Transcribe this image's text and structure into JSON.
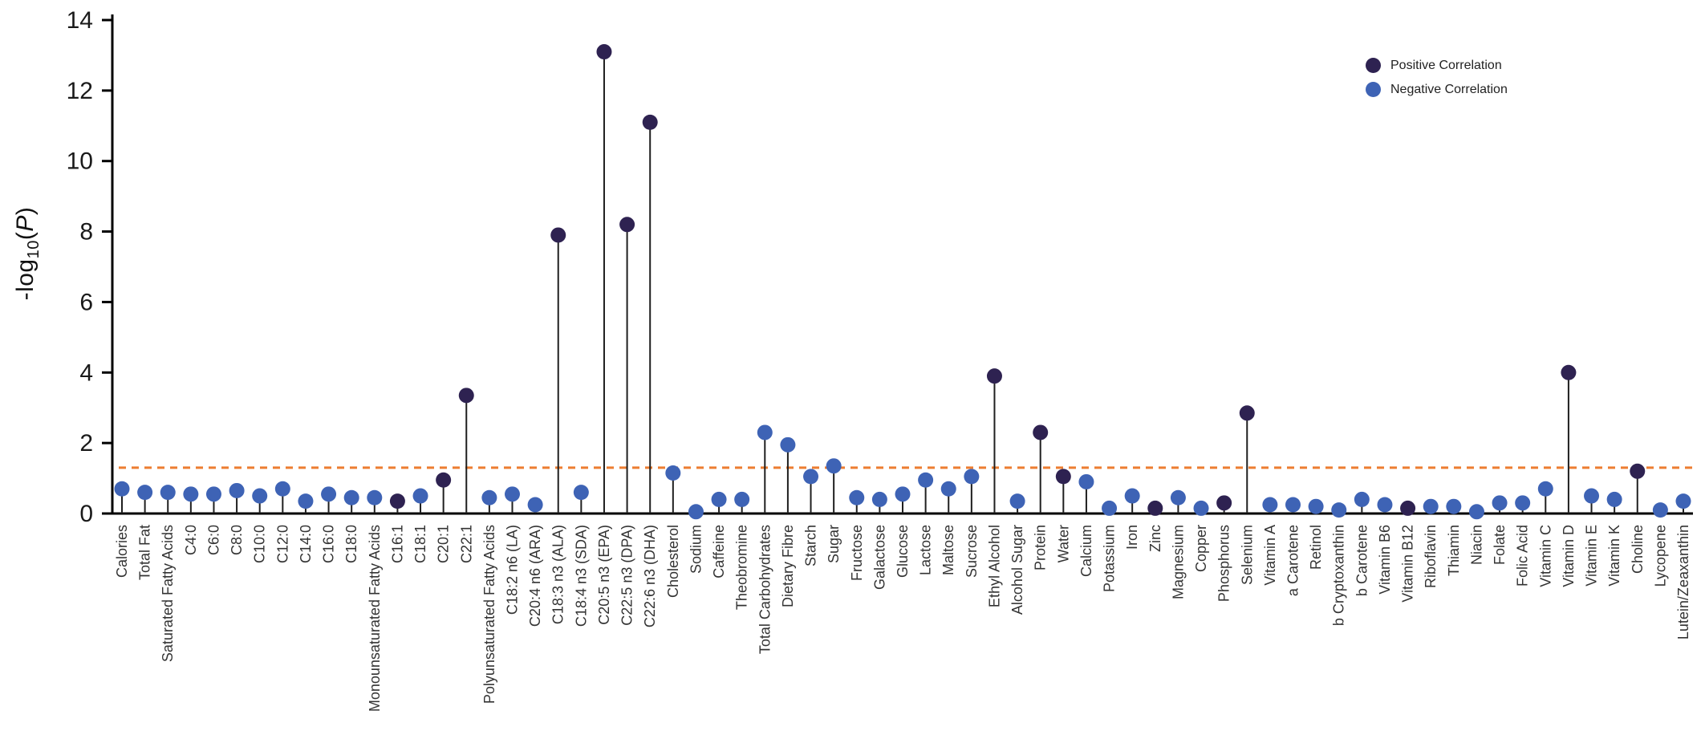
{
  "chart_data": {
    "type": "scatter",
    "variant": "lollipop",
    "title": "",
    "xlabel": "",
    "ylabel_parts": {
      "prefix": "-log",
      "sub": "10",
      "open": "(",
      "var": "P",
      "close": ")"
    },
    "ylim": [
      0,
      14
    ],
    "yticks": [
      0,
      2,
      4,
      6,
      8,
      10,
      12,
      14
    ],
    "grid": false,
    "threshold": 1.3,
    "colors": {
      "positive": "#2E2251",
      "negative": "#3E63B5",
      "threshold_line": "#ED7D31",
      "stem": "#1F1F1F",
      "axis": "#000000",
      "tick_label": "#1A1A1A",
      "category_label": "#333333"
    },
    "legend": [
      {
        "label": "Positive Correlation",
        "key": "positive",
        "color": "#2E2251"
      },
      {
        "label": "Negative Correlation",
        "key": "negative",
        "color": "#3E63B5"
      }
    ],
    "legend_position": "top-right",
    "points": [
      {
        "category": "Calories",
        "value": 0.7,
        "correlation": "negative"
      },
      {
        "category": "Total Fat",
        "value": 0.6,
        "correlation": "negative"
      },
      {
        "category": "Saturated Fatty Acids",
        "value": 0.6,
        "correlation": "negative"
      },
      {
        "category": "C4:0",
        "value": 0.55,
        "correlation": "negative"
      },
      {
        "category": "C6:0",
        "value": 0.55,
        "correlation": "negative"
      },
      {
        "category": "C8:0",
        "value": 0.65,
        "correlation": "negative"
      },
      {
        "category": "C10:0",
        "value": 0.5,
        "correlation": "negative"
      },
      {
        "category": "C12:0",
        "value": 0.7,
        "correlation": "negative"
      },
      {
        "category": "C14:0",
        "value": 0.35,
        "correlation": "negative"
      },
      {
        "category": "C16:0",
        "value": 0.55,
        "correlation": "negative"
      },
      {
        "category": "C18:0",
        "value": 0.45,
        "correlation": "negative"
      },
      {
        "category": "Monounsaturated Fatty Acids",
        "value": 0.45,
        "correlation": "negative"
      },
      {
        "category": "C16:1",
        "value": 0.35,
        "correlation": "positive"
      },
      {
        "category": "C18:1",
        "value": 0.5,
        "correlation": "negative"
      },
      {
        "category": "C20:1",
        "value": 0.95,
        "correlation": "positive"
      },
      {
        "category": "C22:1",
        "value": 3.35,
        "correlation": "positive"
      },
      {
        "category": "Polyunsaturated Fatty Acids",
        "value": 0.45,
        "correlation": "negative"
      },
      {
        "category": "C18:2 n6 (LA)",
        "value": 0.55,
        "correlation": "negative"
      },
      {
        "category": "C20:4 n6 (ARA)",
        "value": 0.25,
        "correlation": "negative"
      },
      {
        "category": "C18:3 n3 (ALA)",
        "value": 7.9,
        "correlation": "positive"
      },
      {
        "category": "C18:4 n3 (SDA)",
        "value": 0.6,
        "correlation": "negative"
      },
      {
        "category": "C20:5 n3 (EPA)",
        "value": 13.1,
        "correlation": "positive"
      },
      {
        "category": "C22:5 n3 (DPA)",
        "value": 8.2,
        "correlation": "positive"
      },
      {
        "category": "C22:6 n3 (DHA)",
        "value": 11.1,
        "correlation": "positive"
      },
      {
        "category": "Cholesterol",
        "value": 1.15,
        "correlation": "negative"
      },
      {
        "category": "Sodium",
        "value": 0.05,
        "correlation": "negative"
      },
      {
        "category": "Caffeine",
        "value": 0.4,
        "correlation": "negative"
      },
      {
        "category": "Theobromine",
        "value": 0.4,
        "correlation": "negative"
      },
      {
        "category": "Total Carbohydrates",
        "value": 2.3,
        "correlation": "negative"
      },
      {
        "category": "Dietary Fibre",
        "value": 1.95,
        "correlation": "negative"
      },
      {
        "category": "Starch",
        "value": 1.05,
        "correlation": "negative"
      },
      {
        "category": "Sugar",
        "value": 1.35,
        "correlation": "negative"
      },
      {
        "category": "Fructose",
        "value": 0.45,
        "correlation": "negative"
      },
      {
        "category": "Galactose",
        "value": 0.4,
        "correlation": "negative"
      },
      {
        "category": "Glucose",
        "value": 0.55,
        "correlation": "negative"
      },
      {
        "category": "Lactose",
        "value": 0.95,
        "correlation": "negative"
      },
      {
        "category": "Maltose",
        "value": 0.7,
        "correlation": "negative"
      },
      {
        "category": "Sucrose",
        "value": 1.05,
        "correlation": "negative"
      },
      {
        "category": "Ethyl Alcohol",
        "value": 3.9,
        "correlation": "positive"
      },
      {
        "category": "Alcohol Sugar",
        "value": 0.35,
        "correlation": "negative"
      },
      {
        "category": "Protein",
        "value": 2.3,
        "correlation": "positive"
      },
      {
        "category": "Water",
        "value": 1.05,
        "correlation": "positive"
      },
      {
        "category": "Calcium",
        "value": 0.9,
        "correlation": "negative"
      },
      {
        "category": "Potassium",
        "value": 0.15,
        "correlation": "negative"
      },
      {
        "category": "Iron",
        "value": 0.5,
        "correlation": "negative"
      },
      {
        "category": "Zinc",
        "value": 0.15,
        "correlation": "positive"
      },
      {
        "category": "Magnesium",
        "value": 0.45,
        "correlation": "negative"
      },
      {
        "category": "Copper",
        "value": 0.15,
        "correlation": "negative"
      },
      {
        "category": "Phosphorus",
        "value": 0.3,
        "correlation": "positive"
      },
      {
        "category": "Selenium",
        "value": 2.85,
        "correlation": "positive"
      },
      {
        "category": "Vitamin A",
        "value": 0.25,
        "correlation": "negative"
      },
      {
        "category": "a Carotene",
        "value": 0.25,
        "correlation": "negative"
      },
      {
        "category": "Retinol",
        "value": 0.2,
        "correlation": "negative"
      },
      {
        "category": "b Cryptoxanthin",
        "value": 0.1,
        "correlation": "negative"
      },
      {
        "category": "b Carotene",
        "value": 0.4,
        "correlation": "negative"
      },
      {
        "category": "Vitamin B6",
        "value": 0.25,
        "correlation": "negative"
      },
      {
        "category": "Vitamin B12",
        "value": 0.15,
        "correlation": "positive"
      },
      {
        "category": "Riboflavin",
        "value": 0.2,
        "correlation": "negative"
      },
      {
        "category": "Thiamin",
        "value": 0.2,
        "correlation": "negative"
      },
      {
        "category": "Niacin",
        "value": 0.05,
        "correlation": "negative"
      },
      {
        "category": "Folate",
        "value": 0.3,
        "correlation": "negative"
      },
      {
        "category": "Folic Acid",
        "value": 0.3,
        "correlation": "negative"
      },
      {
        "category": "Vitamin C",
        "value": 0.7,
        "correlation": "negative"
      },
      {
        "category": "Vitamin D",
        "value": 4.0,
        "correlation": "positive"
      },
      {
        "category": "Vitamin E",
        "value": 0.5,
        "correlation": "negative"
      },
      {
        "category": "Vitamin K",
        "value": 0.4,
        "correlation": "negative"
      },
      {
        "category": "Choline",
        "value": 1.2,
        "correlation": "positive"
      },
      {
        "category": "Lycopene",
        "value": 0.1,
        "correlation": "negative"
      },
      {
        "category": "Lutein/Zeaxanthin",
        "value": 0.35,
        "correlation": "negative"
      }
    ]
  }
}
